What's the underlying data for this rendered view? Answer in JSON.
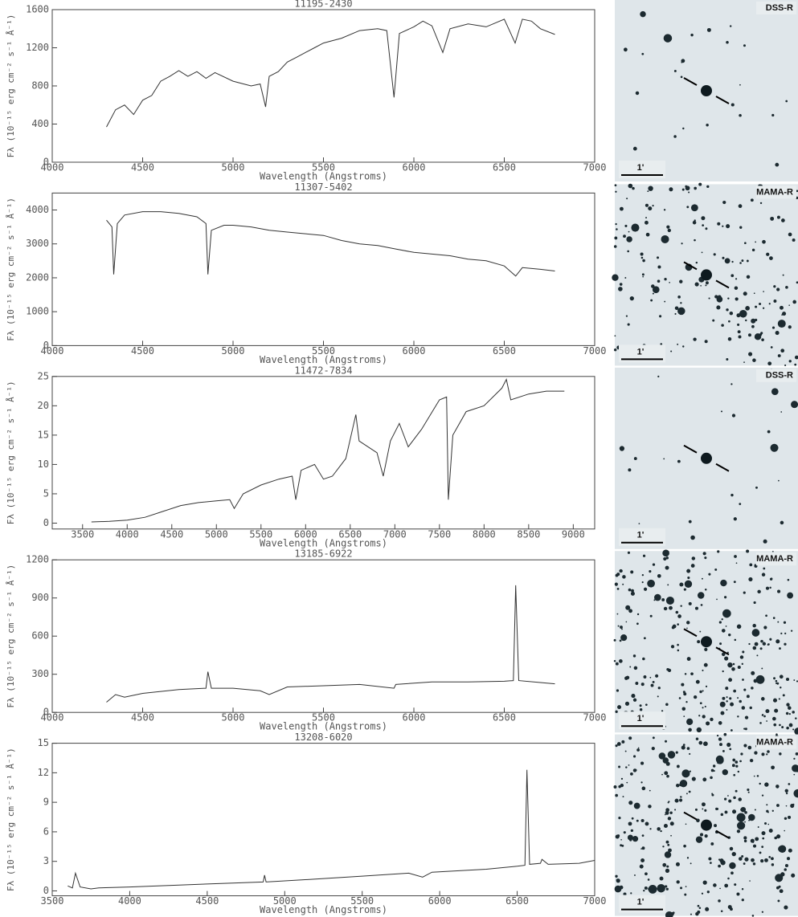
{
  "chart_data": [
    {
      "type": "line",
      "title": "11195-2430",
      "xlabel": "Wavelength (Angstroms)",
      "ylabel": "Fλ (10⁻¹⁵ erg cm⁻² s⁻¹ Å⁻¹)",
      "xlim": [
        4000,
        7000
      ],
      "xticks": [
        4000,
        4500,
        5000,
        5500,
        6000,
        6500,
        7000
      ],
      "ylim": [
        0,
        1600
      ],
      "yticks": [
        0,
        400,
        800,
        1200,
        1600
      ],
      "series": [
        {
          "color": "#333333",
          "x": [
            4300,
            4350,
            4400,
            4450,
            4500,
            4550,
            4600,
            4650,
            4700,
            4750,
            4800,
            4850,
            4900,
            5000,
            5100,
            5150,
            5180,
            5200,
            5250,
            5300,
            5350,
            5400,
            5450,
            5500,
            5600,
            5700,
            5800,
            5850,
            5890,
            5920,
            6000,
            6050,
            6100,
            6160,
            6200,
            6300,
            6400,
            6500,
            6560,
            6600,
            6650,
            6700,
            6780
          ],
          "values": [
            370,
            550,
            600,
            500,
            650,
            700,
            850,
            900,
            960,
            900,
            950,
            880,
            940,
            850,
            800,
            820,
            580,
            900,
            950,
            1050,
            1100,
            1150,
            1200,
            1250,
            1300,
            1380,
            1400,
            1380,
            680,
            1350,
            1420,
            1480,
            1430,
            1150,
            1400,
            1450,
            1420,
            1500,
            1250,
            1500,
            1480,
            1400,
            1340
          ]
        }
      ]
    },
    {
      "type": "line",
      "title": "11307-5402",
      "xlabel": "Wavelength (Angstroms)",
      "ylabel": "Fλ (10⁻¹⁵ erg cm⁻² s⁻¹ Å⁻¹)",
      "xlim": [
        4000,
        7000
      ],
      "xticks": [
        4000,
        4500,
        5000,
        5500,
        6000,
        6500,
        7000
      ],
      "ylim": [
        0,
        4500
      ],
      "yticks": [
        0,
        1000,
        2000,
        3000,
        4000
      ],
      "series": [
        {
          "color": "#333333",
          "x": [
            4300,
            4330,
            4340,
            4360,
            4400,
            4500,
            4600,
            4700,
            4800,
            4850,
            4861,
            4880,
            4950,
            5000,
            5100,
            5200,
            5300,
            5400,
            5500,
            5600,
            5700,
            5800,
            5900,
            6000,
            6100,
            6200,
            6300,
            6400,
            6500,
            6563,
            6600,
            6700,
            6780
          ],
          "values": [
            3700,
            3500,
            2100,
            3600,
            3850,
            3950,
            3950,
            3900,
            3800,
            3600,
            2100,
            3400,
            3550,
            3550,
            3500,
            3400,
            3350,
            3300,
            3250,
            3100,
            3000,
            2950,
            2850,
            2750,
            2700,
            2650,
            2550,
            2500,
            2350,
            2050,
            2300,
            2250,
            2200
          ]
        }
      ]
    },
    {
      "type": "line",
      "title": "11472-7834",
      "xlabel": "Wavelength (Angstroms)",
      "ylabel": "Fλ (10⁻¹⁵ erg cm⁻² s⁻¹ Å⁻¹)",
      "xlim": [
        3160,
        9240
      ],
      "xticks": [
        3500,
        4000,
        4500,
        5000,
        5500,
        6000,
        6500,
        7000,
        7500,
        8000,
        8500,
        9000
      ],
      "ylim": [
        -1,
        25
      ],
      "yticks": [
        0,
        5,
        10,
        15,
        20,
        25
      ],
      "series": [
        {
          "color": "#333333",
          "x": [
            3600,
            3800,
            4000,
            4200,
            4400,
            4600,
            4800,
            5000,
            5150,
            5200,
            5300,
            5500,
            5700,
            5850,
            5890,
            5950,
            6100,
            6200,
            6300,
            6450,
            6563,
            6600,
            6800,
            6870,
            6950,
            7050,
            7150,
            7300,
            7500,
            7580,
            7600,
            7650,
            7800,
            8000,
            8200,
            8250,
            8300,
            8500,
            8700,
            8900
          ],
          "values": [
            0.2,
            0.3,
            0.5,
            1,
            2,
            3,
            3.5,
            3.8,
            4,
            2.5,
            5,
            6.5,
            7.5,
            8,
            4,
            9,
            10,
            7.5,
            8,
            11,
            18.5,
            14,
            12,
            8,
            14,
            17,
            13,
            16,
            21,
            21.5,
            4,
            15,
            19,
            20,
            23,
            24.5,
            21,
            22,
            22.5,
            22.5
          ]
        }
      ]
    },
    {
      "type": "line",
      "title": "13185-6922",
      "xlabel": "Wavelength (Angstroms)",
      "ylabel": "Fλ (10⁻¹⁵ erg cm⁻² s⁻¹ Å⁻¹)",
      "xlim": [
        4000,
        7000
      ],
      "xticks": [
        4000,
        4500,
        5000,
        5500,
        6000,
        6500,
        7000
      ],
      "ylim": [
        0,
        1200
      ],
      "yticks": [
        0,
        300,
        600,
        900,
        1200
      ],
      "series": [
        {
          "color": "#333333",
          "x": [
            4300,
            4350,
            4400,
            4500,
            4700,
            4850,
            4861,
            4880,
            5000,
            5150,
            5200,
            5300,
            5500,
            5700,
            5890,
            5900,
            6100,
            6300,
            6500,
            6550,
            6563,
            6580,
            6700,
            6780
          ],
          "values": [
            80,
            140,
            120,
            150,
            180,
            190,
            320,
            190,
            190,
            170,
            140,
            200,
            210,
            220,
            190,
            220,
            240,
            240,
            245,
            250,
            1000,
            250,
            235,
            225
          ]
        }
      ]
    },
    {
      "type": "line",
      "title": "13208-6020",
      "xlabel": "Wavelength (Angstroms)",
      "ylabel": "Fλ (10⁻¹⁵ erg cm⁻² s⁻¹ Å⁻¹)",
      "xlim": [
        3500,
        7000
      ],
      "xticks": [
        3500,
        4000,
        4500,
        5000,
        5500,
        6000,
        6500,
        7000
      ],
      "ylim": [
        -0.5,
        15
      ],
      "yticks": [
        0,
        3,
        6,
        9,
        12,
        15
      ],
      "series": [
        {
          "color": "#333333",
          "x": [
            3600,
            3630,
            3650,
            3680,
            3750,
            3800,
            4000,
            4500,
            4861,
            4870,
            4880,
            5200,
            5500,
            5800,
            5890,
            5950,
            6300,
            6500,
            6550,
            6563,
            6580,
            6650,
            6660,
            6700,
            6900,
            7000
          ],
          "values": [
            0.5,
            0.3,
            1.8,
            0.4,
            0.2,
            0.3,
            0.4,
            0.7,
            0.9,
            1.6,
            0.9,
            1.2,
            1.5,
            1.8,
            1.4,
            1.9,
            2.2,
            2.5,
            2.6,
            12.3,
            2.7,
            2.8,
            3.2,
            2.7,
            2.8,
            3.1
          ]
        }
      ]
    }
  ],
  "finding_charts": [
    {
      "survey": "DSS-R",
      "scale": "1'"
    },
    {
      "survey": "MAMA-R",
      "scale": "1'"
    },
    {
      "survey": "DSS-R",
      "scale": "1'"
    },
    {
      "survey": "MAMA-R",
      "scale": "1'"
    },
    {
      "survey": "MAMA-R",
      "scale": "1'"
    }
  ]
}
